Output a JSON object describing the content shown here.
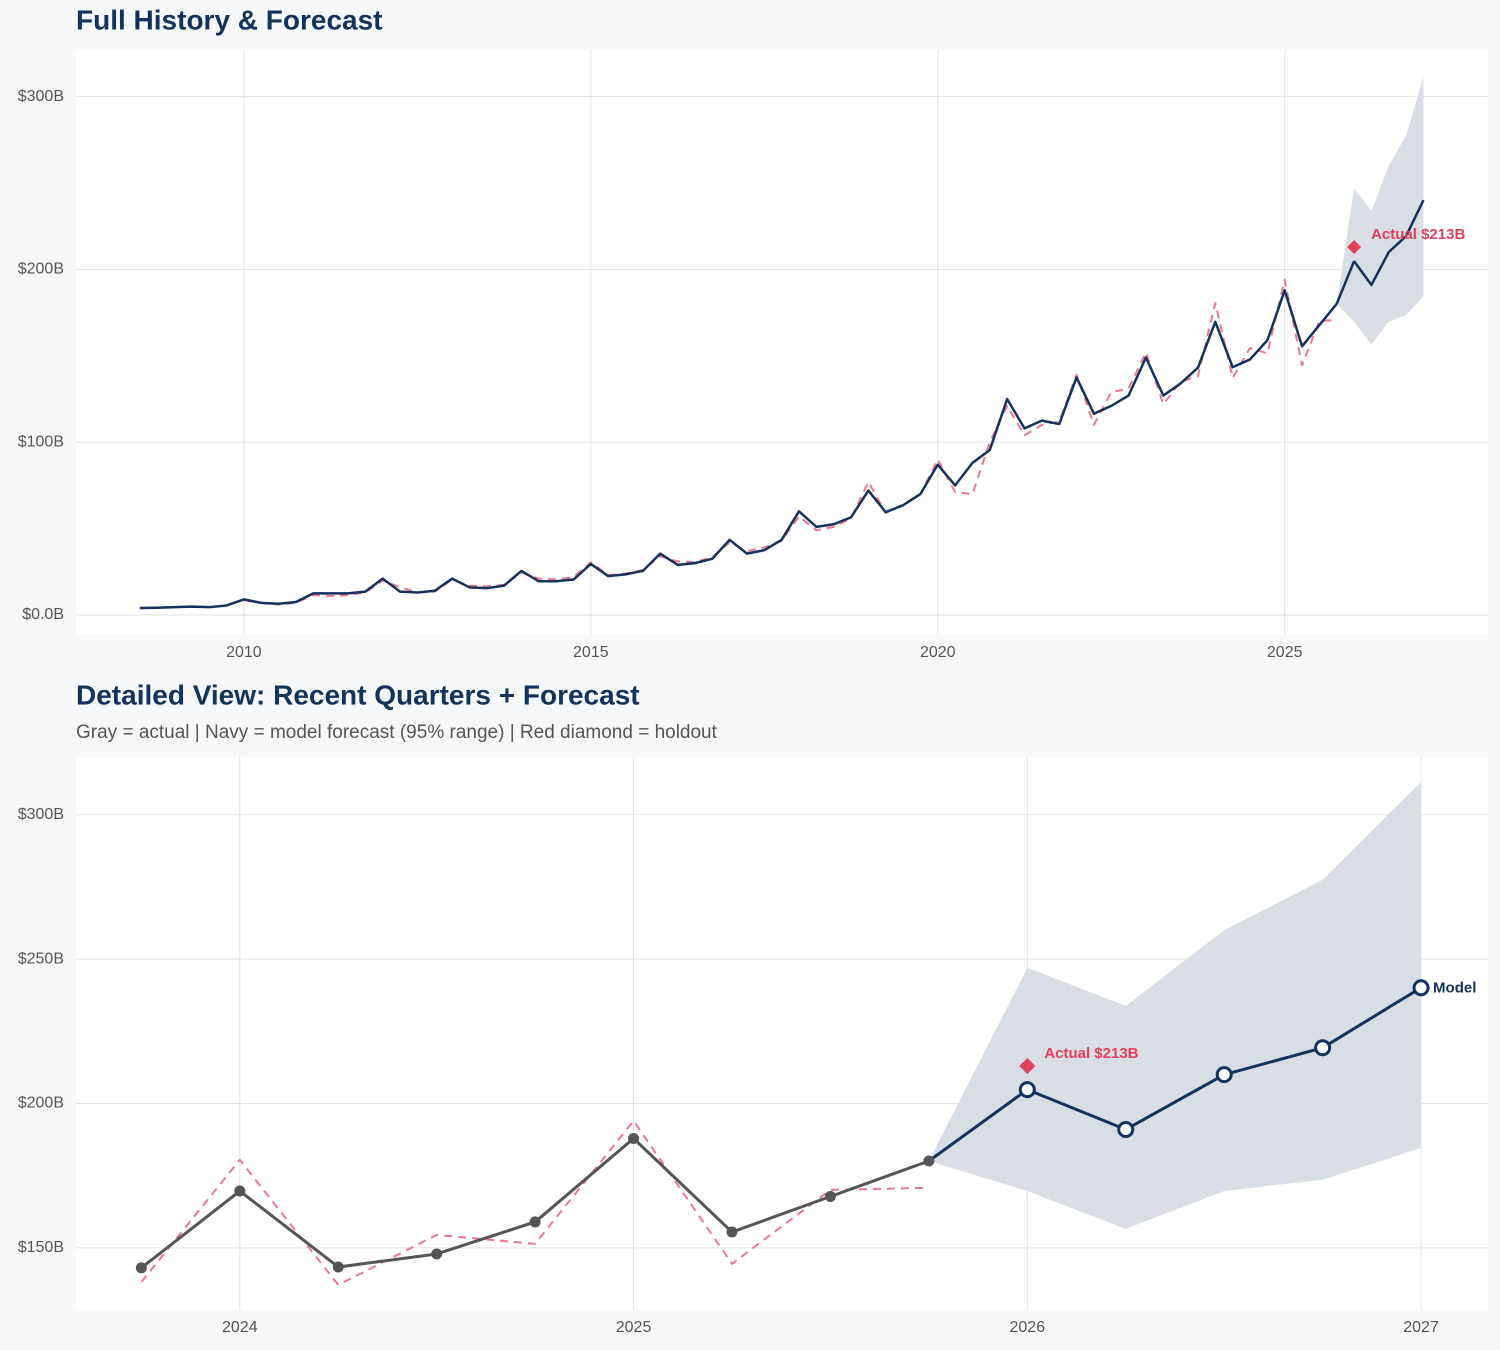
{
  "chart_data": [
    {
      "type": "line",
      "title": "Full History & Forecast",
      "xlim": [
        2007.58,
        2027.93
      ],
      "ylim": [
        -11.6,
        327
      ],
      "xticks": [
        2010,
        2015,
        2020,
        2025
      ],
      "yticks": [
        {
          "value": 0,
          "label": "$0.0B"
        },
        {
          "value": 100,
          "label": "$100B"
        },
        {
          "value": 200,
          "label": "$200B"
        },
        {
          "value": 300,
          "label": "$300B"
        }
      ],
      "grid": true,
      "band": {
        "color": "#d9dee5",
        "x": [
          2025.75,
          2026,
          2026.25,
          2026.5,
          2026.75,
          2027
        ],
        "upper": [
          180.1,
          247,
          233.8,
          260,
          277.5,
          311.4
        ],
        "lower": [
          180.1,
          169.7,
          156.6,
          169.7,
          173.6,
          184.6
        ]
      },
      "series": [
        {
          "color": "#e8798f",
          "dashed": true,
          "x": [
            2010,
            2010.25,
            2010.5,
            2010.75,
            2011,
            2011.25,
            2011.5,
            2011.75,
            2012,
            2012.25,
            2012.5,
            2012.75,
            2013,
            2013.25,
            2013.5,
            2013.75,
            2014,
            2014.25,
            2014.5,
            2014.75,
            2015,
            2015.25,
            2015.5,
            2015.75,
            2016,
            2016.25,
            2016.5,
            2016.75,
            2017,
            2017.25,
            2017.5,
            2017.75,
            2018,
            2018.25,
            2018.5,
            2018.75,
            2019,
            2019.25,
            2019.5,
            2019.75,
            2020,
            2020.25,
            2020.5,
            2020.75,
            2021,
            2021.25,
            2021.5,
            2021.75,
            2022,
            2022.25,
            2022.5,
            2022.75,
            2023,
            2023.25,
            2023.5,
            2023.75,
            2024,
            2024.25,
            2024.5,
            2024.75,
            2025,
            2025.25,
            2025.5,
            2025.75
          ],
          "values": [
            8.5,
            7,
            6,
            7,
            11.5,
            11,
            11.5,
            13,
            20,
            16,
            13,
            13.5,
            20.5,
            17,
            16.5,
            17.5,
            24.5,
            21,
            20.5,
            22,
            30.5,
            23,
            24,
            26,
            34,
            31,
            30.5,
            33.5,
            42,
            37,
            39,
            43,
            57,
            49,
            51,
            56,
            77,
            59,
            64,
            70,
            90,
            71,
            70,
            100,
            121,
            104,
            110,
            112,
            139,
            110,
            129,
            131,
            152,
            122,
            135,
            138.2,
            180.5,
            137.2,
            154.5,
            151.4,
            194,
            144.5,
            170.1,
            170.8
          ]
        },
        {
          "color": "#14325c",
          "x": [
            2008.5,
            2008.75,
            2009,
            2009.25,
            2009.5,
            2009.75,
            2010,
            2010.25,
            2010.5,
            2010.75,
            2011,
            2011.25,
            2011.5,
            2011.75,
            2012,
            2012.25,
            2012.5,
            2012.75,
            2013,
            2013.25,
            2013.5,
            2013.75,
            2014,
            2014.25,
            2014.5,
            2014.75,
            2015,
            2015.25,
            2015.5,
            2015.75,
            2016,
            2016.25,
            2016.5,
            2016.75,
            2017,
            2017.25,
            2017.5,
            2017.75,
            2018,
            2018.25,
            2018.5,
            2018.75,
            2019,
            2019.25,
            2019.5,
            2019.75,
            2020,
            2020.25,
            2020.5,
            2020.75,
            2021,
            2021.25,
            2021.5,
            2021.75,
            2022,
            2022.25,
            2022.5,
            2022.75,
            2023,
            2023.25,
            2023.5,
            2023.75,
            2024,
            2024.25,
            2024.5,
            2024.75,
            2025,
            2025.25,
            2025.5,
            2025.75
          ],
          "values": [
            4.0,
            4.2,
            4.5,
            4.8,
            4.5,
            5.5,
            9,
            7,
            6.5,
            7.5,
            12.5,
            12.5,
            12.5,
            13.5,
            21,
            13.5,
            13,
            14,
            21,
            16,
            15.5,
            17,
            25.5,
            19.5,
            19.5,
            20.5,
            29.5,
            22.5,
            23.5,
            25.5,
            35.5,
            29,
            30,
            32.5,
            43.5,
            35.5,
            37.5,
            43.5,
            60,
            51,
            52.5,
            56.5,
            72,
            59.5,
            63.5,
            70,
            87,
            75,
            88,
            95.5,
            125,
            108,
            112.5,
            110.5,
            137.5,
            116.5,
            121,
            127,
            149,
            127,
            134,
            143.1,
            169.7,
            143.4,
            147.9,
            159,
            187.9,
            155.5,
            167.8,
            180.1
          ]
        },
        {
          "color": "#14325c",
          "connect_previous": true,
          "x": [
            2026,
            2026.25,
            2026.5,
            2026.75,
            2027
          ],
          "values": [
            204.8,
            191,
            210,
            219.3,
            240.1
          ]
        }
      ],
      "holdout": {
        "color": "#e0405e",
        "x": [
          2026
        ],
        "values": [
          213
        ],
        "value_labels": [
          "Actual $213B"
        ]
      }
    },
    {
      "type": "line",
      "title": "Detailed View: Recent Quarters + Forecast",
      "subtitle": "Gray = actual  |  Navy = model forecast (95% range)  |  Red diamond = holdout",
      "xlim": [
        2023.584,
        2027.17
      ],
      "ylim": [
        128.5,
        320
      ],
      "xticks": [
        2024,
        2025,
        2026,
        2027
      ],
      "yticks": [
        {
          "value": 150,
          "label": "$150B"
        },
        {
          "value": 200,
          "label": "$200B"
        },
        {
          "value": 250,
          "label": "$250B"
        },
        {
          "value": 300,
          "label": "$300B"
        }
      ],
      "grid": true,
      "band": {
        "color": "#d9dee5",
        "x": [
          2025.75,
          2026,
          2026.25,
          2026.5,
          2026.75,
          2027
        ],
        "upper": [
          180.1,
          247,
          233.8,
          260,
          277.5,
          311.4
        ],
        "lower": [
          180.1,
          169.7,
          156.6,
          169.7,
          173.6,
          184.6
        ]
      },
      "series": [
        {
          "color": "#e8798f",
          "dashed": true,
          "x": [
            2023.75,
            2024,
            2024.25,
            2024.5,
            2024.75,
            2025,
            2025.25,
            2025.5,
            2025.75
          ],
          "values": [
            138.2,
            180.5,
            137.2,
            154.5,
            151.4,
            194,
            144.5,
            170.1,
            170.8
          ]
        },
        {
          "color": "#555555",
          "markers": "filled",
          "x": [
            2023.75,
            2024,
            2024.25,
            2024.5,
            2024.75,
            2025,
            2025.25,
            2025.5,
            2025.75
          ],
          "values": [
            143.1,
            169.7,
            143.4,
            147.9,
            159,
            187.9,
            155.5,
            167.8,
            180.1
          ]
        },
        {
          "color": "#14325c",
          "markers": "hollow",
          "connect_previous": true,
          "label": "Model",
          "x": [
            2026,
            2026.25,
            2026.5,
            2026.75,
            2027
          ],
          "values": [
            204.8,
            191,
            210,
            219.3,
            240.1
          ]
        }
      ],
      "holdout": {
        "color": "#e0405e",
        "x": [
          2026
        ],
        "values": [
          213
        ],
        "value_labels": [
          "Actual $213B"
        ]
      }
    }
  ]
}
